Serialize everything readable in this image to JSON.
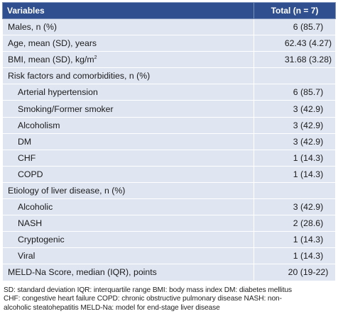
{
  "table": {
    "headers": [
      "Variables",
      "Total (n = 7)"
    ],
    "rows": [
      {
        "label": "Males, n (%)",
        "value": "6 (85.7)",
        "indent": false
      },
      {
        "label": "Age, mean (SD), years",
        "value": "62.43 (4.27)",
        "indent": false
      },
      {
        "label": "BMI, mean (SD), kg/m",
        "sup": "2",
        "value": "31.68 (3.28)",
        "indent": false
      },
      {
        "label": "Risk factors and comorbidities, n (%)",
        "value": "",
        "indent": false
      },
      {
        "label": "Arterial hypertension",
        "value": "6 (85.7)",
        "indent": true
      },
      {
        "label": "Smoking/Former smoker",
        "value": "3 (42.9)",
        "indent": true
      },
      {
        "label": "Alcoholism",
        "value": "3 (42.9)",
        "indent": true
      },
      {
        "label": "DM",
        "value": "3 (42.9)",
        "indent": true
      },
      {
        "label": "CHF",
        "value": "1 (14.3)",
        "indent": true
      },
      {
        "label": "COPD",
        "value": "1 (14.3)",
        "indent": true
      },
      {
        "label": "Etiology of liver disease, n (%)",
        "value": "",
        "indent": false
      },
      {
        "label": "Alcoholic",
        "value": "3 (42.9)",
        "indent": true
      },
      {
        "label": "NASH",
        "value": "2 (28.6)",
        "indent": true
      },
      {
        "label": "Cryptogenic",
        "value": "1 (14.3)",
        "indent": true
      },
      {
        "label": "Viral",
        "value": "1 (14.3)",
        "indent": true
      },
      {
        "label": "MELD-Na Score, median (IQR), points",
        "value": "20 (19-22)",
        "indent": false
      }
    ]
  },
  "footnote": {
    "line1": "SD: standard deviation IQR: interquartile range BMI: body mass index DM: diabetes mellitus",
    "line2": "CHF: congestive heart failure COPD: chronic obstructive pulmonary disease NASH: non-",
    "line3": "alcoholic steatohepatitis MELD-Na: model for end-stage liver disease"
  }
}
